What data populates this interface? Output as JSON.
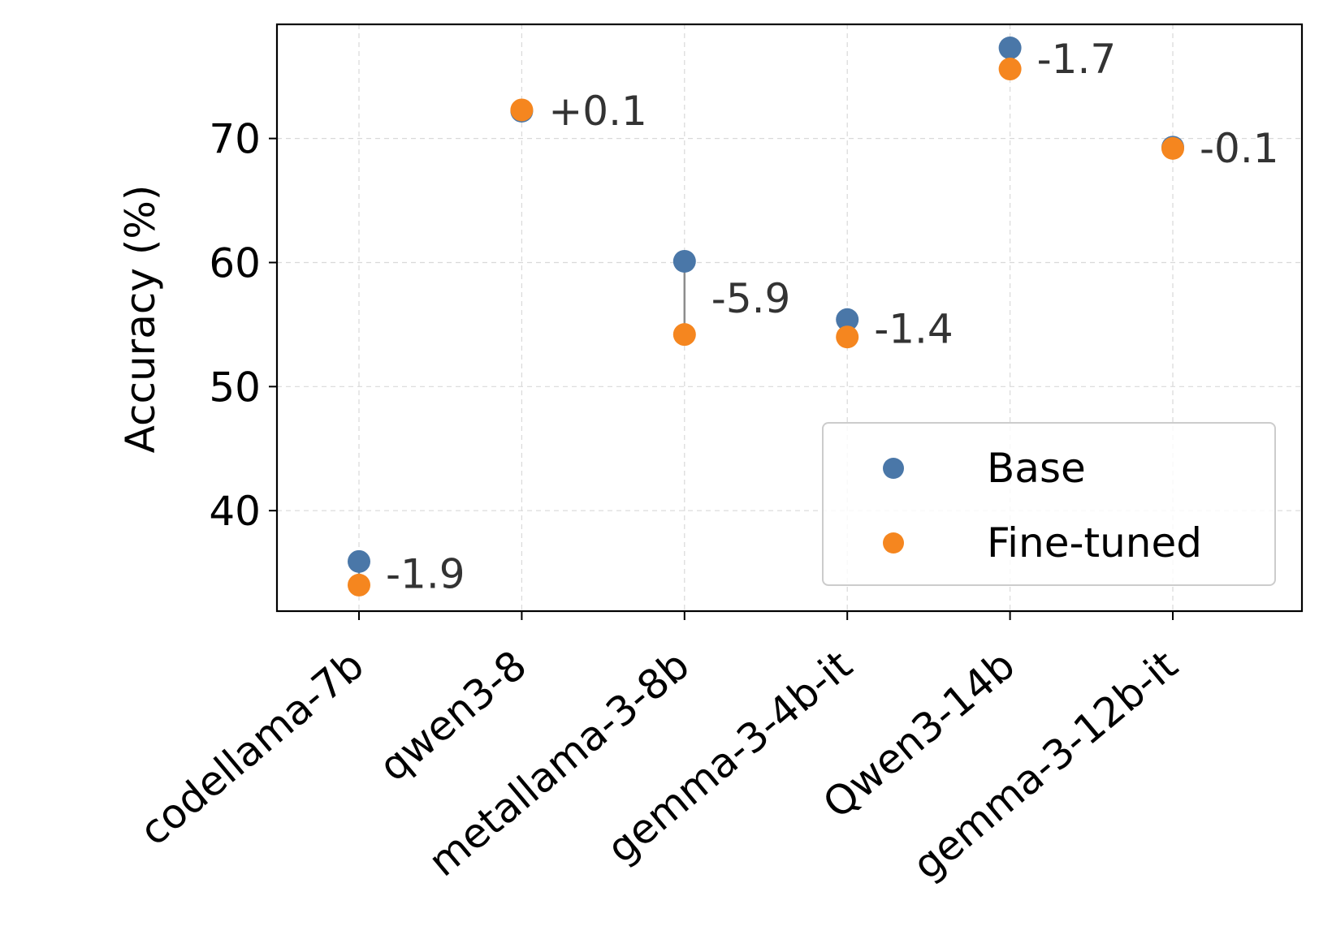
{
  "chart_data": {
    "type": "scatter",
    "title": "",
    "xlabel": "",
    "ylabel": "Accuracy (%)",
    "categories": [
      "codellama-7b",
      "qwen3-8",
      "metallama-3-8b",
      "gemma-3-4b-it",
      "Qwen3-14b",
      "gemma-3-12b-it"
    ],
    "ylim": [
      31.9,
      79.2
    ],
    "yticks": [
      40,
      50,
      60,
      70
    ],
    "grid": true,
    "legend_position": "lower-right",
    "series": [
      {
        "name": "Base",
        "color": "#4a77a8",
        "values": [
          35.9,
          72.2,
          60.1,
          55.4,
          77.3,
          69.3
        ]
      },
      {
        "name": "Fine-tuned",
        "color": "#f5861f",
        "values": [
          34.0,
          72.3,
          54.2,
          54.0,
          75.6,
          69.2
        ]
      }
    ],
    "annotations": [
      "-1.9",
      "+0.1",
      "-5.9",
      "-1.4",
      "-1.7",
      "-0.1"
    ]
  }
}
